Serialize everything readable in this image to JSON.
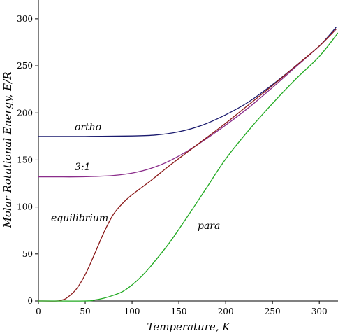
{
  "chart_data": {
    "type": "line",
    "xlabel": "Temperature, K",
    "ylabel": "Molar Rotational Energy, E/R",
    "xlim": [
      0,
      320
    ],
    "ylim": [
      0,
      320
    ],
    "x_ticks": [
      0,
      50,
      100,
      150,
      200,
      250,
      300
    ],
    "y_ticks": [
      0,
      50,
      100,
      150,
      200,
      250,
      300
    ],
    "grid": false,
    "series": [
      {
        "name": "ortho",
        "color": "#1a1a6e",
        "x": [
          0,
          50,
          100,
          125,
          150,
          175,
          200,
          225,
          250,
          275,
          300,
          318
        ],
        "y": [
          175,
          175,
          175.5,
          176.5,
          180,
          187,
          198,
          212,
          230,
          250,
          271,
          291
        ]
      },
      {
        "name": "3:1",
        "color": "#8b2d8b",
        "x": [
          0,
          20,
          40,
          60,
          80,
          100,
          120,
          140,
          160,
          180,
          200,
          225,
          250,
          275,
          300,
          318
        ],
        "y": [
          132,
          132,
          132,
          132.5,
          133.5,
          136,
          141,
          149,
          160,
          173,
          187,
          206,
          227,
          249,
          271,
          289
        ]
      },
      {
        "name": "equilibrium",
        "color": "#8b1a1a",
        "x": [
          0,
          20,
          25,
          30,
          40,
          50,
          60,
          70,
          80,
          90,
          100,
          120,
          140,
          160,
          180,
          200,
          225,
          250,
          275,
          300,
          318
        ],
        "y": [
          0,
          0,
          1,
          3,
          12,
          28,
          50,
          73,
          92,
          104,
          113,
          128,
          144,
          159,
          174,
          189,
          209,
          229,
          250,
          271,
          289
        ]
      },
      {
        "name": "para",
        "color": "#22aa22",
        "x": [
          0,
          50,
          60,
          70,
          80,
          90,
          100,
          110,
          120,
          140,
          160,
          180,
          200,
          225,
          250,
          275,
          300,
          320
        ],
        "y": [
          0,
          0,
          1,
          3,
          6,
          10,
          17,
          26,
          37,
          62,
          91,
          121,
          151,
          182,
          210,
          236,
          260,
          285
        ]
      }
    ]
  }
}
